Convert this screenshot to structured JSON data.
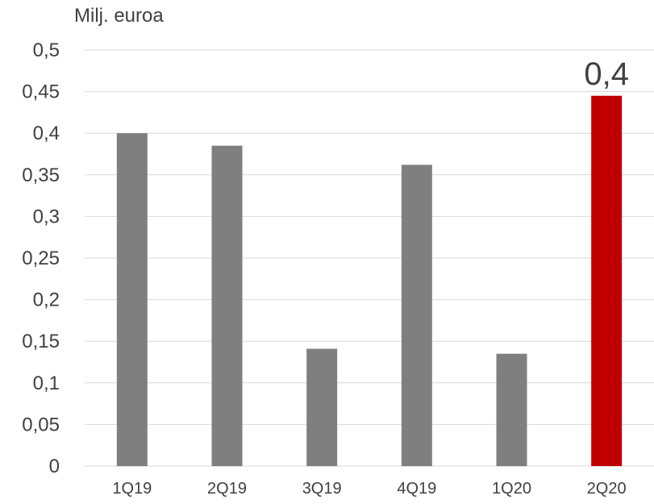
{
  "chart_data": {
    "type": "bar",
    "unit_label": "Milj. euroa",
    "categories": [
      "1Q19",
      "2Q19",
      "3Q19",
      "4Q19",
      "1Q20",
      "2Q20"
    ],
    "values": [
      0.4,
      0.385,
      0.141,
      0.362,
      0.135,
      0.445
    ],
    "ylim": [
      0,
      0.5
    ],
    "yticks": [
      "0",
      "0,05",
      "0,1",
      "0,15",
      "0,2",
      "0,25",
      "0,3",
      "0,35",
      "0,4",
      "0,45",
      "0,5"
    ],
    "highlight": {
      "index": 5,
      "label": "0,4"
    },
    "grid": true,
    "colors": {
      "bar": "#7f7f7f",
      "highlight": "#c00000",
      "grid": "#d9d9d9",
      "text": "#404040"
    }
  }
}
